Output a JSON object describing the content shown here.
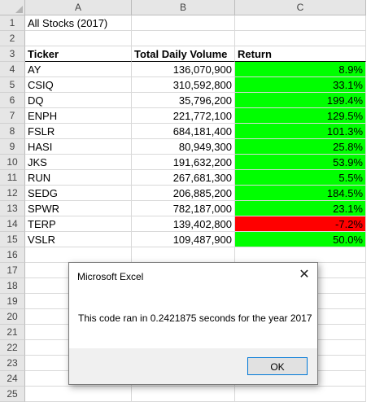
{
  "columns": [
    "A",
    "B",
    "C"
  ],
  "row_numbers": [
    "1",
    "2",
    "3",
    "4",
    "5",
    "6",
    "7",
    "8",
    "9",
    "10",
    "11",
    "12",
    "13",
    "14",
    "15",
    "16",
    "17",
    "18",
    "19",
    "20",
    "21",
    "22",
    "23",
    "24",
    "25"
  ],
  "title_cell": "All Stocks (2017)",
  "headers": {
    "ticker": "Ticker",
    "volume": "Total Daily Volume",
    "return": "Return"
  },
  "rows": [
    {
      "ticker": "AY",
      "volume": "136,070,900",
      "return": "8.9%",
      "status": "positive"
    },
    {
      "ticker": "CSIQ",
      "volume": "310,592,800",
      "return": "33.1%",
      "status": "positive"
    },
    {
      "ticker": "DQ",
      "volume": "35,796,200",
      "return": "199.4%",
      "status": "positive"
    },
    {
      "ticker": "ENPH",
      "volume": "221,772,100",
      "return": "129.5%",
      "status": "positive"
    },
    {
      "ticker": "FSLR",
      "volume": "684,181,400",
      "return": "101.3%",
      "status": "positive"
    },
    {
      "ticker": "HASI",
      "volume": "80,949,300",
      "return": "25.8%",
      "status": "positive"
    },
    {
      "ticker": "JKS",
      "volume": "191,632,200",
      "return": "53.9%",
      "status": "positive"
    },
    {
      "ticker": "RUN",
      "volume": "267,681,300",
      "return": "5.5%",
      "status": "positive"
    },
    {
      "ticker": "SEDG",
      "volume": "206,885,200",
      "return": "184.5%",
      "status": "positive"
    },
    {
      "ticker": "SPWR",
      "volume": "782,187,000",
      "return": "23.1%",
      "status": "positive"
    },
    {
      "ticker": "TERP",
      "volume": "139,402,800",
      "return": "-7.2%",
      "status": "negative"
    },
    {
      "ticker": "VSLR",
      "volume": "109,487,900",
      "return": "50.0%",
      "status": "positive"
    }
  ],
  "colors": {
    "positive": "#00ff00",
    "negative": "#ff0000"
  },
  "dialog": {
    "title": "Microsoft Excel",
    "message": "This code ran in 0.2421875 seconds for the year 2017",
    "ok_label": "OK",
    "close_icon": "close-icon"
  }
}
